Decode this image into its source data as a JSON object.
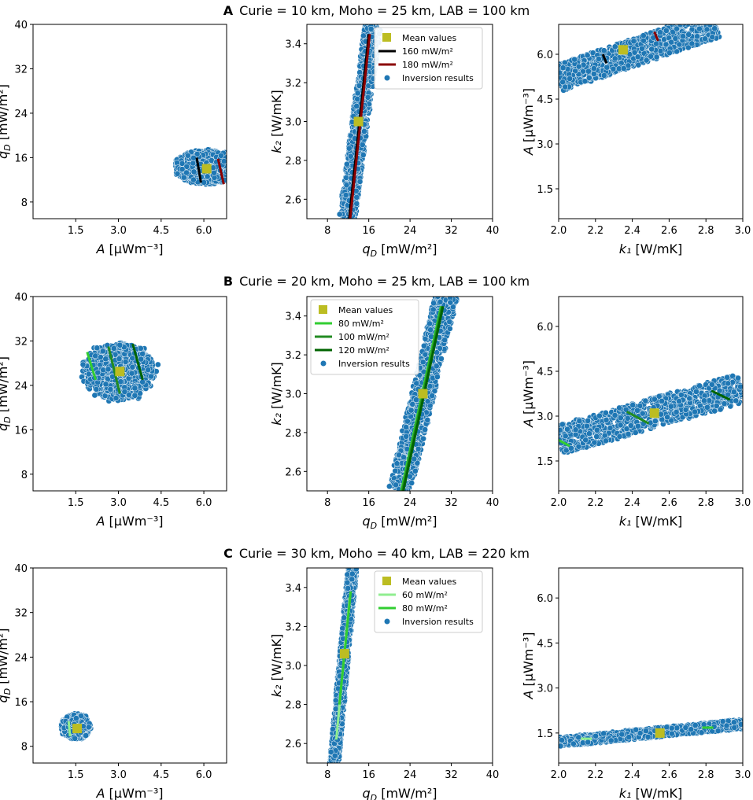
{
  "colors": {
    "scatter": "#1f77b4",
    "scatter_edge": "#ffffff",
    "mean": "#bcbd22",
    "black": "#000000",
    "darkred": "#8b0000",
    "lightgreen": "#90ee90",
    "lime": "#32cd32",
    "green": "#228b22",
    "darkgreen": "#006400"
  },
  "rows": [
    {
      "letter": "A",
      "title": "Curie = 10 km, Moho = 25 km, LAB = 100 km",
      "legend_panel": 1,
      "legend": [
        {
          "kind": "mean",
          "label": "Mean values",
          "color": "#bcbd22"
        },
        {
          "kind": "line",
          "label": "160 mW/m²",
          "color": "#000000"
        },
        {
          "kind": "line",
          "label": "180 mW/m²",
          "color": "#8b0000"
        },
        {
          "kind": "scatter",
          "label": "Inversion results",
          "color": "#1f77b4"
        }
      ]
    },
    {
      "letter": "B",
      "title": "Curie = 20 km, Moho = 25 km, LAB = 100 km",
      "legend_panel": 1,
      "legend": [
        {
          "kind": "mean",
          "label": "Mean values",
          "color": "#bcbd22"
        },
        {
          "kind": "line",
          "label": "80 mW/m²",
          "color": "#32cd32"
        },
        {
          "kind": "line",
          "label": "100 mW/m²",
          "color": "#228b22"
        },
        {
          "kind": "line",
          "label": "120 mW/m²",
          "color": "#006400"
        },
        {
          "kind": "scatter",
          "label": "Inversion results",
          "color": "#1f77b4"
        }
      ]
    },
    {
      "letter": "C",
      "title": "Curie = 30 km, Moho = 40 km, LAB = 220 km",
      "legend_panel": 1,
      "legend": [
        {
          "kind": "mean",
          "label": "Mean values",
          "color": "#bcbd22"
        },
        {
          "kind": "line",
          "label": "60 mW/m²",
          "color": "#90ee90"
        },
        {
          "kind": "line",
          "label": "80 mW/m²",
          "color": "#32cd32"
        },
        {
          "kind": "scatter",
          "label": "Inversion results",
          "color": "#1f77b4"
        }
      ]
    }
  ],
  "axes": [
    {
      "xlabel": "A [μWm⁻³]",
      "ylabel": "q_D [mW/m²]",
      "xlim": [
        0,
        6.8
      ],
      "ylim": [
        5,
        40
      ],
      "xticks": [
        1.5,
        3.0,
        4.5,
        6.0
      ],
      "xticklabels": [
        "1.5",
        "3.0",
        "4.5",
        "6.0"
      ],
      "yticks": [
        8,
        16,
        24,
        32,
        40
      ],
      "yticklabels": [
        "8",
        "16",
        "24",
        "32",
        "40"
      ]
    },
    {
      "xlabel": "q_D [mW/m²]",
      "ylabel": "k₂ [W/mK]",
      "xlim": [
        4,
        40
      ],
      "ylim": [
        2.5,
        3.5
      ],
      "xticks": [
        8,
        16,
        24,
        32,
        40
      ],
      "xticklabels": [
        "8",
        "16",
        "24",
        "32",
        "40"
      ],
      "yticks": [
        2.6,
        2.8,
        3.0,
        3.2,
        3.4
      ],
      "yticklabels": [
        "2.6",
        "2.8",
        "3.0",
        "3.2",
        "3.4"
      ]
    },
    {
      "xlabel": "k₁ [W/mK]",
      "ylabel": "A [μWm⁻³]",
      "xlim": [
        2.0,
        3.0
      ],
      "ylim": [
        0.5,
        7.0
      ],
      "xticks": [
        2.0,
        2.2,
        2.4,
        2.6,
        2.8,
        3.0
      ],
      "xticklabels": [
        "2.0",
        "2.2",
        "2.4",
        "2.6",
        "2.8",
        "3.0"
      ],
      "yticks": [
        1.5,
        3.0,
        4.5,
        6.0
      ],
      "yticklabels": [
        "1.5",
        "3.0",
        "4.5",
        "6.0"
      ]
    }
  ],
  "chart_data": [
    {
      "type": "scatter",
      "row": "A",
      "panel": "A vs qD",
      "clouds": [
        {
          "shape": "ellipse",
          "cx": 6.1,
          "cy": 14.3,
          "rx": 1.1,
          "ry": 3.0,
          "angle": 0
        }
      ],
      "mean": [
        6.1,
        14.0
      ],
      "lines": [
        {
          "color": "#000000",
          "x": [
            5.75,
            5.9
          ],
          "y": [
            16.0,
            11.5
          ]
        },
        {
          "color": "#8b0000",
          "x": [
            6.5,
            6.7
          ],
          "y": [
            15.8,
            11.2
          ]
        }
      ]
    },
    {
      "type": "scatter",
      "row": "A",
      "panel": "qD vs k2",
      "clouds": [
        {
          "shape": "band",
          "x0": 11.8,
          "y0": 2.5,
          "x1": 16.8,
          "y1": 3.5,
          "half_width": 1.6
        }
      ],
      "mean": [
        14.0,
        3.0
      ],
      "lines": [
        {
          "color": "#000000",
          "x": [
            12.2,
            16.0
          ],
          "y": [
            2.5,
            3.45
          ]
        },
        {
          "color": "#8b0000",
          "x": [
            12.4,
            16.2
          ],
          "y": [
            2.5,
            3.45
          ]
        }
      ]
    },
    {
      "type": "scatter",
      "row": "A",
      "panel": "k1 vs A",
      "clouds": [
        {
          "shape": "band",
          "x0": 2.0,
          "y0": 5.2,
          "x1": 2.85,
          "y1": 7.0,
          "half_width": 0.45
        }
      ],
      "mean": [
        2.35,
        6.15
      ],
      "lines": [
        {
          "color": "#000000",
          "x": [
            2.24,
            2.26
          ],
          "y": [
            6.0,
            5.7
          ]
        },
        {
          "color": "#8b0000",
          "x": [
            2.52,
            2.54
          ],
          "y": [
            6.75,
            6.45
          ]
        }
      ]
    },
    {
      "type": "scatter",
      "row": "B",
      "panel": "A vs qD",
      "clouds": [
        {
          "shape": "ellipse",
          "cx": 3.0,
          "cy": 26.5,
          "rx": 1.25,
          "ry": 5.0,
          "angle": 0
        }
      ],
      "mean": [
        3.05,
        26.5
      ],
      "lines": [
        {
          "color": "#32cd32",
          "x": [
            1.9,
            2.2
          ],
          "y": [
            30.0,
            25.0
          ]
        },
        {
          "color": "#228b22",
          "x": [
            2.65,
            3.05
          ],
          "y": [
            31.0,
            22.5
          ]
        },
        {
          "color": "#006400",
          "x": [
            3.5,
            3.85
          ],
          "y": [
            31.5,
            25.0
          ]
        }
      ]
    },
    {
      "type": "scatter",
      "row": "B",
      "panel": "qD vs k2",
      "clouds": [
        {
          "shape": "band",
          "x0": 22.0,
          "y0": 2.5,
          "x1": 31.0,
          "y1": 3.5,
          "half_width": 2.2
        }
      ],
      "mean": [
        26.5,
        3.0
      ],
      "lines": [
        {
          "color": "#32cd32",
          "x": [
            22.3,
            30.0
          ],
          "y": [
            2.5,
            3.45
          ]
        },
        {
          "color": "#228b22",
          "x": [
            22.5,
            30.2
          ],
          "y": [
            2.5,
            3.45
          ]
        },
        {
          "color": "#006400",
          "x": [
            22.7,
            30.4
          ],
          "y": [
            2.5,
            3.45
          ]
        }
      ]
    },
    {
      "type": "scatter",
      "row": "B",
      "panel": "k1 vs A",
      "clouds": [
        {
          "shape": "band",
          "x0": 2.0,
          "y0": 2.2,
          "x1": 3.0,
          "y1": 3.95,
          "half_width": 0.5
        }
      ],
      "mean": [
        2.52,
        3.1
      ],
      "lines": [
        {
          "color": "#32cd32",
          "x": [
            2.0,
            2.06
          ],
          "y": [
            2.2,
            2.0
          ]
        },
        {
          "color": "#228b22",
          "x": [
            2.37,
            2.49
          ],
          "y": [
            3.15,
            2.75
          ]
        },
        {
          "color": "#006400",
          "x": [
            2.83,
            2.93
          ],
          "y": [
            3.85,
            3.55
          ]
        }
      ]
    },
    {
      "type": "scatter",
      "row": "C",
      "panel": "A vs qD",
      "clouds": [
        {
          "shape": "ellipse",
          "cx": 1.5,
          "cy": 11.5,
          "rx": 0.5,
          "ry": 2.2,
          "angle": 0
        }
      ],
      "mean": [
        1.55,
        11.2
      ],
      "lines": [
        {
          "color": "#90ee90",
          "x": [
            1.25,
            1.3
          ],
          "y": [
            12.5,
            9.8
          ]
        },
        {
          "color": "#32cd32",
          "x": [
            1.55,
            1.6
          ],
          "y": [
            12.0,
            10.5
          ]
        }
      ]
    },
    {
      "type": "scatter",
      "row": "C",
      "panel": "qD vs k2",
      "clouds": [
        {
          "shape": "band",
          "x0": 9.3,
          "y0": 2.5,
          "x1": 12.8,
          "y1": 3.5,
          "half_width": 0.9
        }
      ],
      "mean": [
        11.3,
        3.06
      ],
      "lines": [
        {
          "color": "#90ee90",
          "x": [
            9.7,
            12.3
          ],
          "y": [
            2.62,
            3.35
          ]
        },
        {
          "color": "#32cd32",
          "x": [
            10.3,
            12.5
          ],
          "y": [
            2.8,
            3.38
          ]
        }
      ]
    },
    {
      "type": "scatter",
      "row": "C",
      "panel": "k1 vs A",
      "clouds": [
        {
          "shape": "band",
          "x0": 2.0,
          "y0": 1.2,
          "x1": 3.0,
          "y1": 1.8,
          "half_width": 0.16
        }
      ],
      "mean": [
        2.55,
        1.5
      ],
      "lines": [
        {
          "color": "#90ee90",
          "x": [
            2.12,
            2.18
          ],
          "y": [
            1.31,
            1.31
          ]
        },
        {
          "color": "#32cd32",
          "x": [
            2.78,
            2.84
          ],
          "y": [
            1.68,
            1.68
          ]
        }
      ]
    }
  ]
}
